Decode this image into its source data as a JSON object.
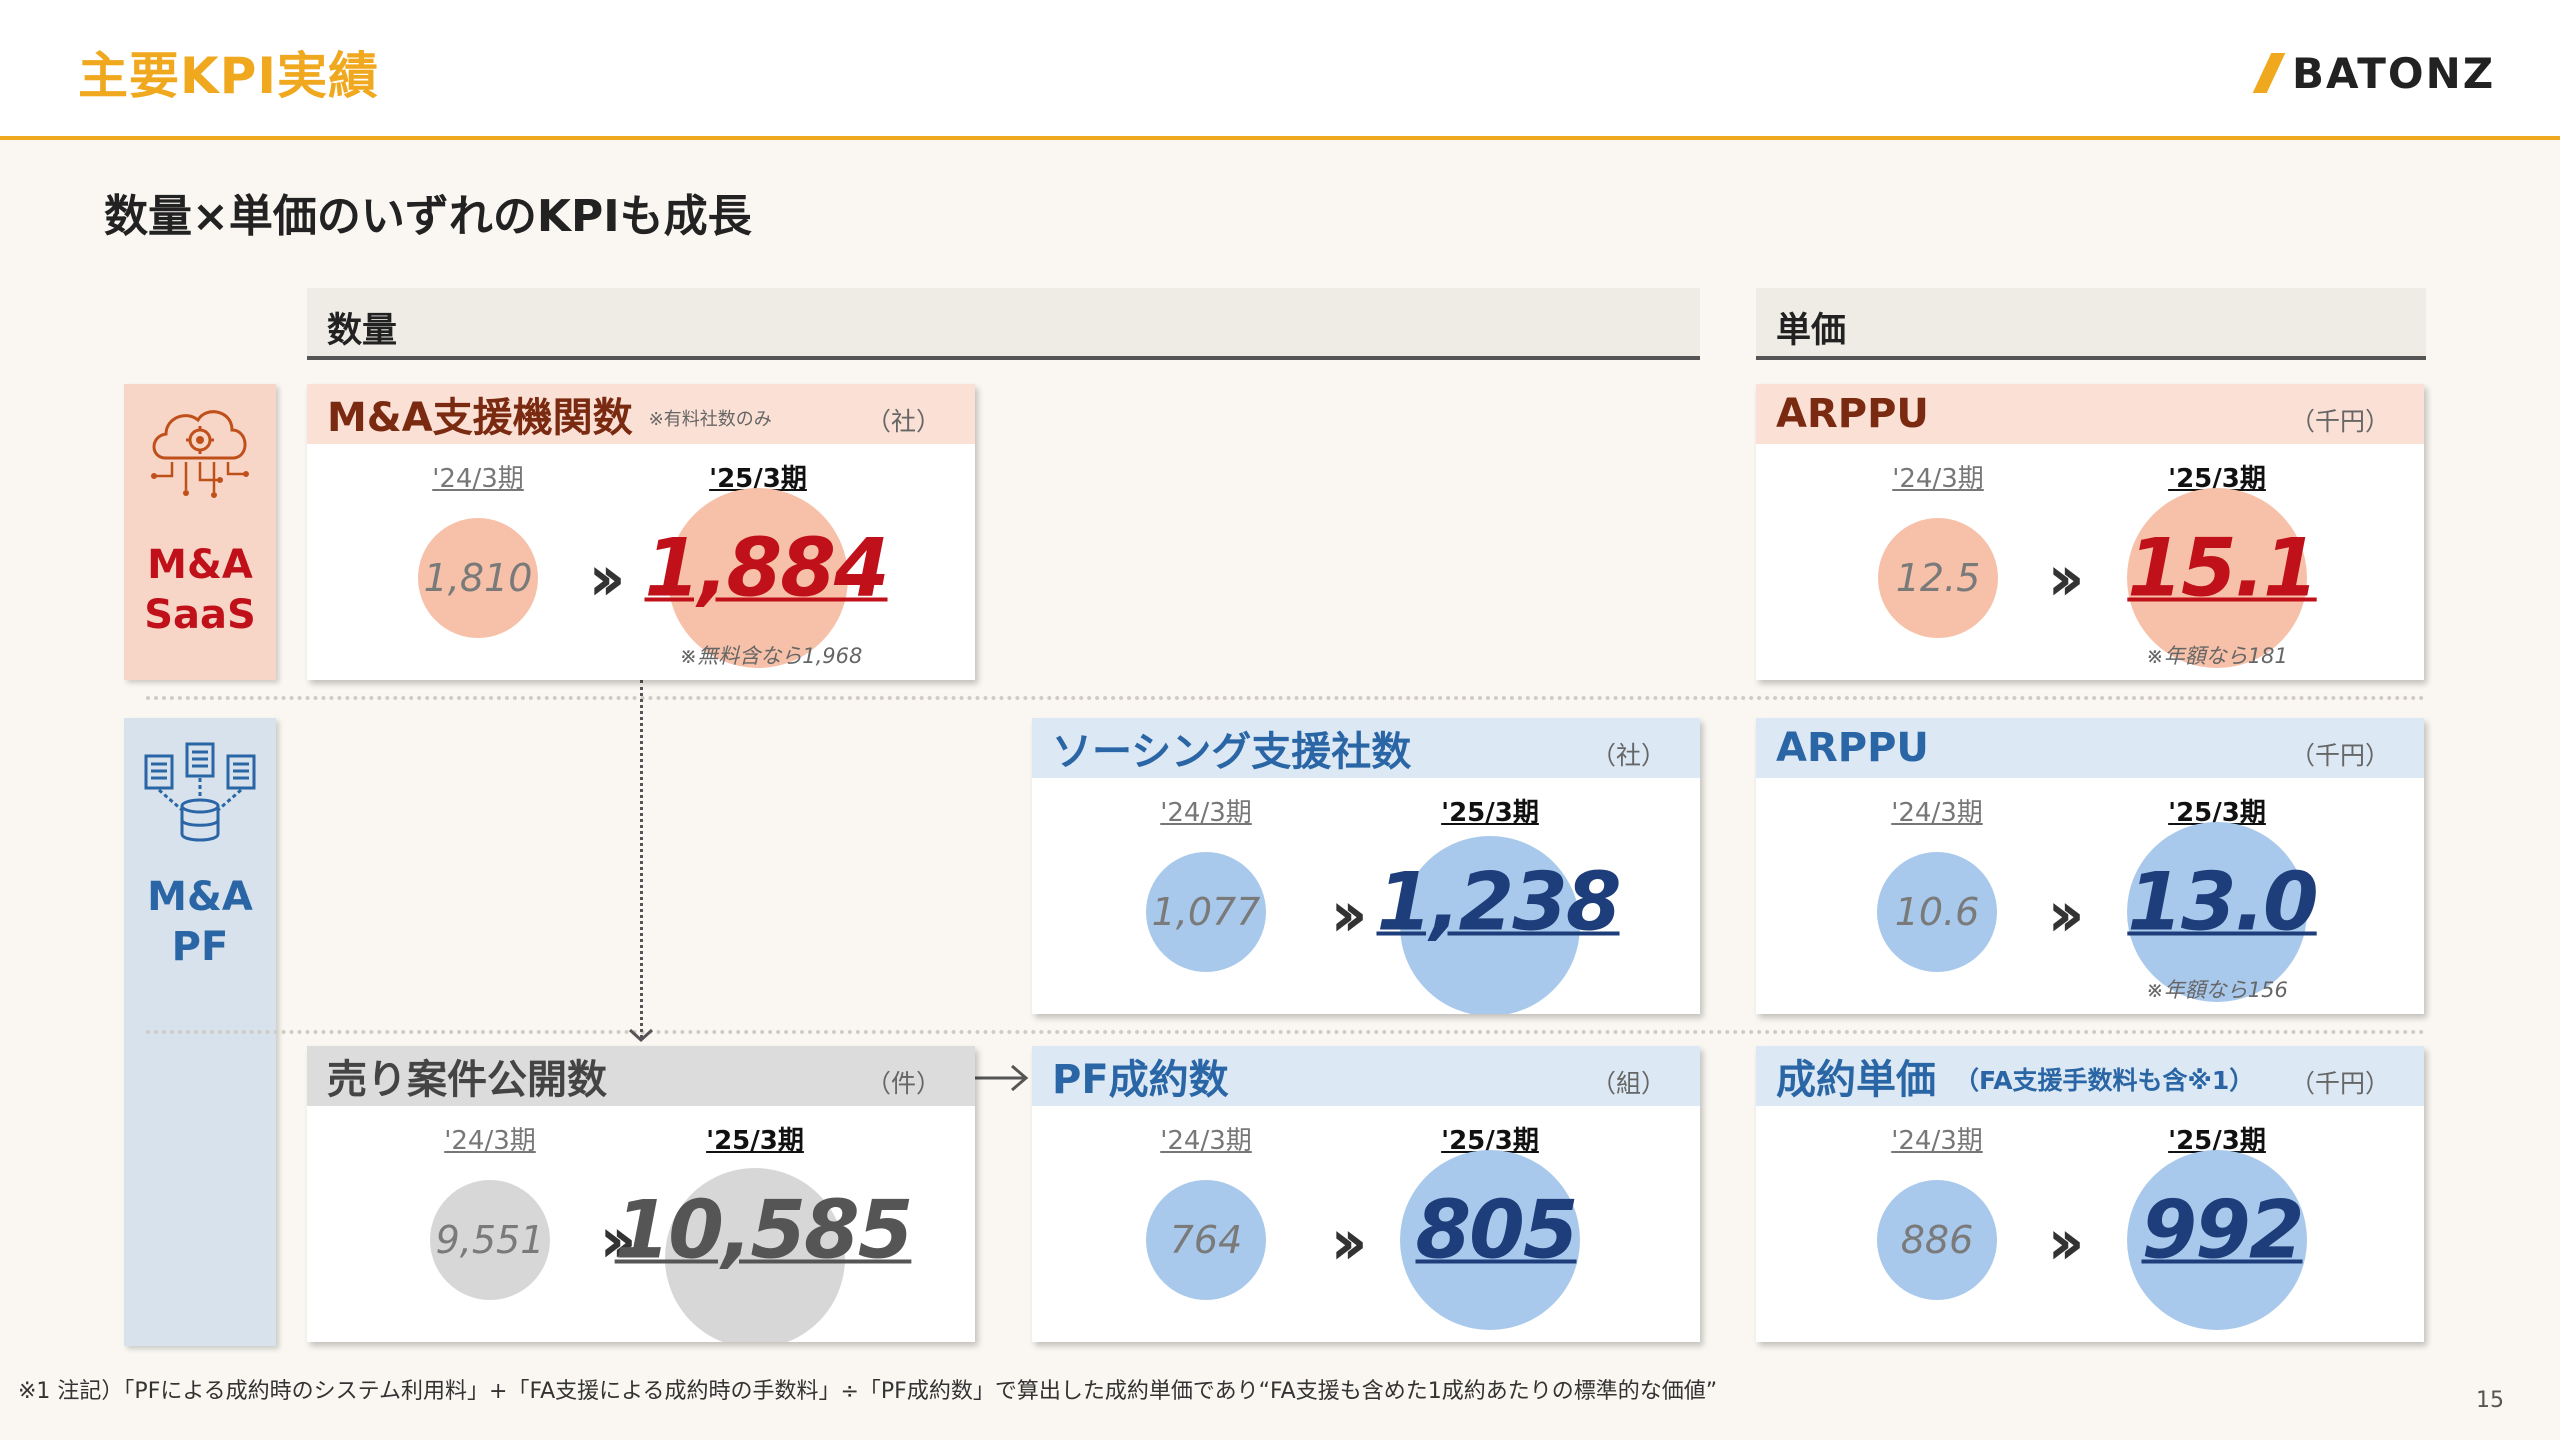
{
  "header": {
    "title": "主要KPI実績",
    "logo": "BATONZ"
  },
  "subtitle": "数量×単価のいずれのKPIも成長",
  "columns": {
    "quantity": "数量",
    "unit_price": "単価"
  },
  "sides": {
    "saas": "M&A\nSaaS",
    "pf": "M&A\nPF"
  },
  "colors": {
    "accent": "#f0a81e",
    "saas_red": "#c0101a",
    "pf_blue": "#2a66a5",
    "navy": "#1d3e7a"
  },
  "cards": {
    "saas_qty": {
      "title": "M&A支援機関数",
      "note": "※有料社数のみ",
      "unit": "（社）",
      "prev_label": "'24/3期",
      "cur_label": "'25/3期",
      "prev": "1,810",
      "cur": "1,884",
      "footnote": "※無料含なら1,968"
    },
    "saas_price": {
      "title": "ARPPU",
      "unit": "（千円）",
      "prev_label": "'24/3期",
      "cur_label": "'25/3期",
      "prev": "12.5",
      "cur": "15.1",
      "footnote": "※年額なら181"
    },
    "sourcing": {
      "title": "ソーシング支援社数",
      "unit": "（社）",
      "prev_label": "'24/3期",
      "cur_label": "'25/3期",
      "prev": "1,077",
      "cur": "1,238"
    },
    "pf_price": {
      "title": "ARPPU",
      "unit": "（千円）",
      "prev_label": "'24/3期",
      "cur_label": "'25/3期",
      "prev": "10.6",
      "cur": "13.0",
      "footnote": "※年額なら156"
    },
    "listings": {
      "title": "売り案件公開数",
      "unit": "（件）",
      "prev_label": "'24/3期",
      "cur_label": "'25/3期",
      "prev": "9,551",
      "cur": "10,585"
    },
    "deals": {
      "title": "PF成約数",
      "unit": "（組）",
      "prev_label": "'24/3期",
      "cur_label": "'25/3期",
      "prev": "764",
      "cur": "805"
    },
    "deal_price": {
      "title": "成約単価",
      "sub": "（FA支援手数料も含※1）",
      "unit": "（千円）",
      "prev_label": "'24/3期",
      "cur_label": "'25/3期",
      "prev": "886",
      "cur": "992"
    }
  },
  "arrow_glyph": "››",
  "footer_note": "※1 注記）「PFによる成約時のシステム利用料」+「FA支援による成約時の手数料」÷「PF成約数」で算出した成約単価であり“FA支援も含めた1成約あたりの標準的な価値”",
  "page_number": "15"
}
